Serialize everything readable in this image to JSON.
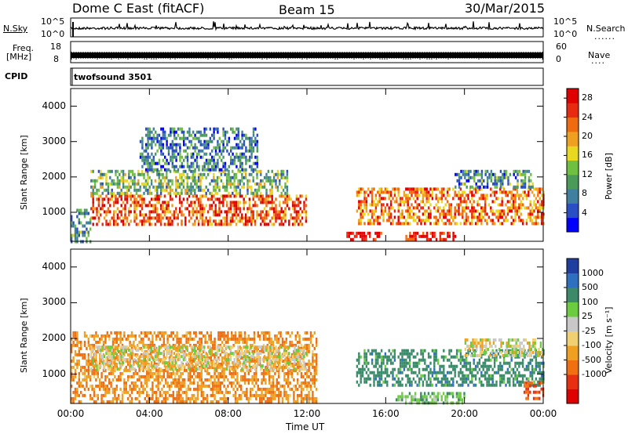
{
  "header": {
    "station": "Dome C East (fitACF)",
    "beam": "Beam 15",
    "date": "30/Mar/2015"
  },
  "aux_panels": {
    "nsky_label": "N.Sky",
    "nsky_ticks": [
      "10^5",
      "10^0"
    ],
    "nsearch_label": "N.Search",
    "nsearch_ticks": [
      "10^5",
      "10^0"
    ],
    "freq_label_1": "Freq.",
    "freq_label_2": "[MHz]",
    "freq_ticks": [
      "18",
      "8"
    ],
    "nave_label": "Nave",
    "nave_ticks": [
      "60",
      "0"
    ],
    "cpid_label": "CPID",
    "cpid_value": "twofsound 3501"
  },
  "chart_data": [
    {
      "type": "heatmap",
      "title": "",
      "xlabel": "Time UT",
      "ylabel": "Slant Range [km]",
      "xticks": [
        "00:00",
        "04:00",
        "08:00",
        "12:00",
        "16:00",
        "20:00",
        "00:00"
      ],
      "yticks": [
        "1000",
        "2000",
        "3000",
        "4000"
      ],
      "ylim": [
        180,
        4500
      ],
      "xlim_hours": [
        0,
        24
      ],
      "colorbar": {
        "label": "Power [dB]",
        "ticks": [
          "4",
          "8",
          "12",
          "16",
          "20",
          "24",
          "28"
        ],
        "range": [
          0,
          30
        ],
        "colors": [
          "#0000ff",
          "#2a4fc4",
          "#3f7f9f",
          "#4a9a5a",
          "#6fc040",
          "#e8d820",
          "#f0a020",
          "#f06a10",
          "#e82a10",
          "#e00000"
        ]
      },
      "echo_regions": [
        {
          "t0": 0.0,
          "t1": 1.0,
          "r0": 200,
          "r1": 1100,
          "value": 10
        },
        {
          "t0": 1.0,
          "t1": 12.0,
          "r0": 700,
          "r1": 1500,
          "value": 24
        },
        {
          "t0": 1.0,
          "t1": 11.0,
          "r0": 1500,
          "r1": 2200,
          "value": 12
        },
        {
          "t0": 3.5,
          "t1": 9.5,
          "r0": 2200,
          "r1": 3400,
          "value": 8
        },
        {
          "t0": 14.0,
          "t1": 15.8,
          "r0": 200,
          "r1": 450,
          "value": 28
        },
        {
          "t0": 14.5,
          "t1": 24.0,
          "r0": 700,
          "r1": 1700,
          "value": 22
        },
        {
          "t0": 17.0,
          "t1": 19.5,
          "r0": 200,
          "r1": 450,
          "value": 28
        },
        {
          "t0": 19.5,
          "t1": 23.5,
          "r0": 1700,
          "r1": 2200,
          "value": 9
        }
      ]
    },
    {
      "type": "heatmap",
      "title": "",
      "xlabel": "Time UT",
      "ylabel": "Slant Range [km]",
      "xticks": [
        "00:00",
        "04:00",
        "08:00",
        "12:00",
        "16:00",
        "20:00",
        "00:00"
      ],
      "yticks": [
        "1000",
        "2000",
        "3000",
        "4000"
      ],
      "ylim": [
        180,
        4500
      ],
      "xlim_hours": [
        0,
        24
      ],
      "colorbar": {
        "label": "Velocity [m s⁻¹]",
        "ticks": [
          "1000",
          "500",
          "100",
          "25",
          "-25",
          "-100",
          "-500",
          "-1000"
        ],
        "colors": [
          "#1e3fa0",
          "#2f6fbf",
          "#3c8a6a",
          "#6ccc40",
          "#c8c8c8",
          "#f0d070",
          "#f0a020",
          "#f07010",
          "#e83010",
          "#e00000"
        ]
      },
      "echo_regions": [
        {
          "t0": 0.0,
          "t1": 12.5,
          "r0": 200,
          "r1": 2200,
          "value": -100
        },
        {
          "t0": 1.0,
          "t1": 12.0,
          "r0": 1100,
          "r1": 1800,
          "value": 0
        },
        {
          "t0": 14.5,
          "t1": 24.0,
          "r0": 700,
          "r1": 1700,
          "value": 300
        },
        {
          "t0": 16.5,
          "t1": 20.0,
          "r0": 200,
          "r1": 500,
          "value": 80
        },
        {
          "t0": 20.0,
          "t1": 24.0,
          "r0": 1500,
          "r1": 2000,
          "value": 0
        },
        {
          "t0": 23.0,
          "t1": 24.0,
          "r0": 300,
          "r1": 800,
          "value": -500
        }
      ]
    }
  ]
}
